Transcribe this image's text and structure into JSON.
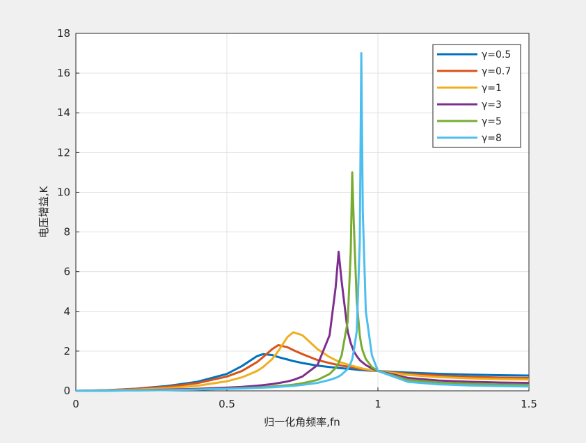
{
  "chart_data": {
    "type": "line",
    "xlabel": "归一化角频率,fn",
    "ylabel": "电压增益,K",
    "x": [
      0,
      0.1,
      0.2,
      0.3,
      0.4,
      0.5,
      0.55,
      0.6,
      0.62,
      0.65,
      0.67,
      0.7,
      0.72,
      0.75,
      0.8,
      0.84,
      0.86,
      0.87,
      0.88,
      0.9,
      0.91,
      0.915,
      0.92,
      0.93,
      0.94,
      0.945,
      0.95,
      0.96,
      0.98,
      1,
      1.1,
      1.2,
      1.3,
      1.4,
      1.5
    ],
    "series": [
      {
        "name": "γ=0.5",
        "color": "#0072bd",
        "values": [
          0,
          0.03,
          0.11,
          0.24,
          0.45,
          0.85,
          1.25,
          1.75,
          1.85,
          1.8,
          1.7,
          1.58,
          1.5,
          1.4,
          1.27,
          1.2,
          1.17,
          1.15,
          1.14,
          1.11,
          1.1,
          1.09,
          1.08,
          1.07,
          1.05,
          1.05,
          1.04,
          1.03,
          1.01,
          1,
          0.92,
          0.86,
          0.82,
          0.79,
          0.77
        ]
      },
      {
        "name": "γ=0.7",
        "color": "#d95319",
        "values": [
          0,
          0.03,
          0.1,
          0.2,
          0.38,
          0.72,
          1.0,
          1.45,
          1.7,
          2.1,
          2.3,
          2.2,
          2.05,
          1.85,
          1.55,
          1.4,
          1.33,
          1.3,
          1.27,
          1.22,
          1.19,
          1.18,
          1.17,
          1.14,
          1.11,
          1.1,
          1.09,
          1.07,
          1.03,
          1,
          0.86,
          0.77,
          0.71,
          0.67,
          0.65
        ]
      },
      {
        "name": "γ=1",
        "color": "#edb120",
        "values": [
          0,
          0.02,
          0.06,
          0.13,
          0.25,
          0.48,
          0.68,
          1.0,
          1.2,
          1.6,
          2.0,
          2.7,
          2.95,
          2.8,
          2.1,
          1.7,
          1.55,
          1.48,
          1.42,
          1.33,
          1.28,
          1.26,
          1.24,
          1.2,
          1.16,
          1.14,
          1.12,
          1.09,
          1.04,
          1,
          0.8,
          0.69,
          0.63,
          0.59,
          0.57
        ]
      },
      {
        "name": "γ=3",
        "color": "#7e2f8e",
        "values": [
          0,
          0.01,
          0.03,
          0.06,
          0.1,
          0.16,
          0.2,
          0.26,
          0.29,
          0.34,
          0.39,
          0.47,
          0.55,
          0.72,
          1.3,
          2.8,
          5.2,
          7,
          5.5,
          3.0,
          2.4,
          2.2,
          2.0,
          1.75,
          1.55,
          1.48,
          1.42,
          1.3,
          1.13,
          1,
          0.65,
          0.52,
          0.46,
          0.42,
          0.4
        ]
      },
      {
        "name": "γ=5",
        "color": "#77ac30",
        "values": [
          0,
          0.01,
          0.02,
          0.04,
          0.07,
          0.11,
          0.14,
          0.17,
          0.19,
          0.22,
          0.24,
          0.28,
          0.31,
          0.38,
          0.55,
          0.85,
          1.15,
          1.4,
          1.8,
          3.5,
          7,
          11,
          8.5,
          4.5,
          2.8,
          2.3,
          2.0,
          1.6,
          1.2,
          1,
          0.55,
          0.42,
          0.36,
          0.32,
          0.3
        ]
      },
      {
        "name": "γ=8",
        "color": "#4dbeee",
        "values": [
          0,
          0.01,
          0.02,
          0.04,
          0.06,
          0.1,
          0.12,
          0.15,
          0.16,
          0.18,
          0.2,
          0.23,
          0.25,
          0.3,
          0.4,
          0.55,
          0.65,
          0.72,
          0.82,
          1.1,
          1.4,
          1.6,
          2.0,
          3.0,
          7.5,
          17,
          9,
          4,
          1.8,
          1,
          0.45,
          0.33,
          0.27,
          0.24,
          0.22
        ]
      }
    ],
    "xlim": [
      0,
      1.5
    ],
    "xticks": [
      0,
      0.5,
      1,
      1.5
    ],
    "ylim": [
      0,
      18
    ],
    "yticks": [
      0,
      2,
      4,
      6,
      8,
      10,
      12,
      14,
      16,
      18
    ],
    "grid": true,
    "legend": "northeast"
  }
}
